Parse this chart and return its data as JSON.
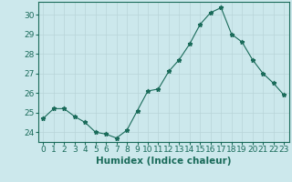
{
  "x": [
    0,
    1,
    2,
    3,
    4,
    5,
    6,
    7,
    8,
    9,
    10,
    11,
    12,
    13,
    14,
    15,
    16,
    17,
    18,
    19,
    20,
    21,
    22,
    23
  ],
  "y": [
    24.7,
    25.2,
    25.2,
    24.8,
    24.5,
    24.0,
    23.9,
    23.7,
    24.1,
    25.1,
    26.1,
    26.2,
    27.1,
    27.7,
    28.5,
    29.5,
    30.1,
    30.35,
    29.0,
    28.6,
    27.7,
    27.0,
    26.5,
    25.9
  ],
  "line_color": "#1a6b5a",
  "marker": "*",
  "xlabel": "Humidex (Indice chaleur)",
  "ylim": [
    23.5,
    30.65
  ],
  "yticks": [
    24,
    25,
    26,
    27,
    28,
    29,
    30
  ],
  "xlim": [
    -0.5,
    23.5
  ],
  "xticks": [
    0,
    1,
    2,
    3,
    4,
    5,
    6,
    7,
    8,
    9,
    10,
    11,
    12,
    13,
    14,
    15,
    16,
    17,
    18,
    19,
    20,
    21,
    22,
    23
  ],
  "bg_color": "#cce8ec",
  "grid_color": "#b8d4d8",
  "tick_fontsize": 6.5,
  "xlabel_fontsize": 7.5,
  "line_width": 0.8,
  "marker_size": 3.5
}
